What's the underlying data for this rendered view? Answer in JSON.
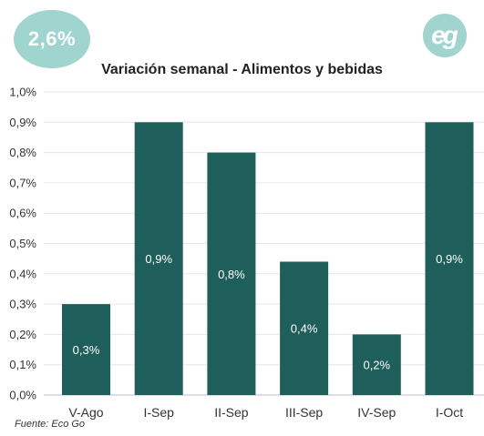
{
  "badge": {
    "text": "2,6%"
  },
  "logo": {
    "text": "eg"
  },
  "source": "Fuente: Eco Go",
  "colors": {
    "bar": "#1f5f5b",
    "accent": "#9fd4cf",
    "grid": "#e6e6e6"
  },
  "chart_data": {
    "type": "bar",
    "title": "Variación semanal - Alimentos y bebidas",
    "xlabel": "",
    "ylabel": "",
    "categories": [
      "V-Ago",
      "I-Sep",
      "II-Sep",
      "III-Sep",
      "IV-Sep",
      "I-Oct"
    ],
    "values": [
      0.3,
      0.9,
      0.8,
      0.44,
      0.2,
      0.9
    ],
    "data_labels": [
      "0,3%",
      "0,9%",
      "0,8%",
      "0,4%",
      "0,2%",
      "0,9%"
    ],
    "ylim": [
      0,
      1.0
    ],
    "yticks": [
      0,
      0.1,
      0.2,
      0.3,
      0.4,
      0.5,
      0.6,
      0.7,
      0.8,
      0.9,
      1.0
    ],
    "ytick_labels": [
      "0,0%",
      "0,1%",
      "0,2%",
      "0,3%",
      "0,4%",
      "0,5%",
      "0,6%",
      "0,7%",
      "0,8%",
      "0,9%",
      "1,0%"
    ],
    "grid": true,
    "legend": "none"
  }
}
